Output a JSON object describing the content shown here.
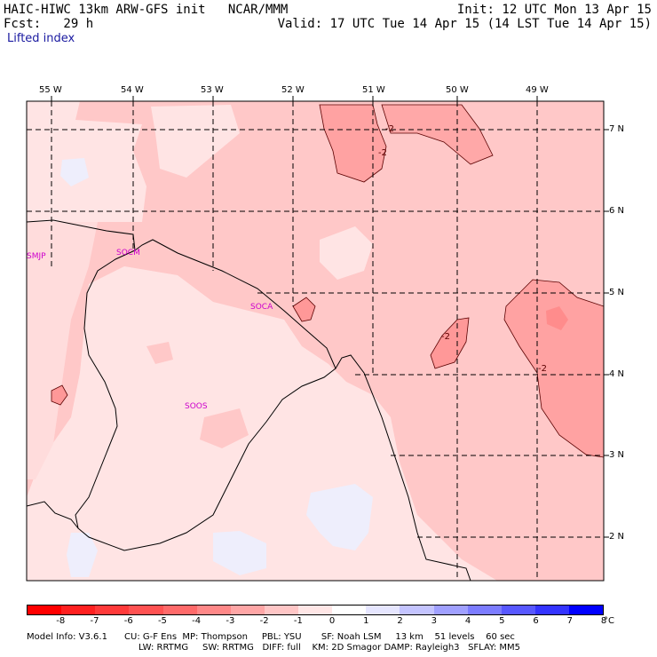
{
  "header": {
    "line1_left": "HAIC-HIWC 13km ARW-GFS init   NCAR/MMM",
    "line2_left": "Fcst:   29 h",
    "line1_right": "Init: 12 UTC Mon 13 Apr 15",
    "line2_right": "Valid: 17 UTC Tue 14 Apr 15 (14 LST Tue 14 Apr 15)",
    "field": "Lifted index"
  },
  "map": {
    "lon_labels": [
      "55 W",
      "54 W",
      "53 W",
      "52 W",
      "51 W",
      "50 W",
      "49 W"
    ],
    "lat_labels": [
      "7 N",
      "6 N",
      "5 N",
      "4 N",
      "3 N",
      "2 N"
    ],
    "stations": [
      "SMJP",
      "SOCM",
      "SOCA",
      "SOOS"
    ],
    "contour_labels": [
      "-2",
      "-2",
      "-2",
      "-2"
    ]
  },
  "colorbar": {
    "labels": [
      "-8",
      "-7",
      "-6",
      "-5",
      "-4",
      "-3",
      "-2",
      "-1",
      "0",
      "1",
      "2",
      "3",
      "4",
      "5",
      "6",
      "7",
      "8"
    ],
    "unit": "°C",
    "colors": [
      "#ff0000",
      "#ff2020",
      "#ff3a3a",
      "#ff5252",
      "#ff6a6a",
      "#ff8888",
      "#ffa6a6",
      "#ffc6c6",
      "#ffe6e6",
      "#ffffff",
      "#e6e6ff",
      "#c4c4ff",
      "#a0a0ff",
      "#7c7cff",
      "#5858ff",
      "#3434ff",
      "#0000ff"
    ]
  },
  "footer": {
    "line1": "Model Info: V3.6.1      CU: G-F Ens  MP: Thompson     PBL: YSU       SF: Noah LSM     13 km    51 levels    60 sec",
    "line2": "LW: RRTMG     SW: RRTMG   DIFF: full    KM: 2D Smagor DAMP: Rayleigh3   SFLAY: MM5"
  }
}
